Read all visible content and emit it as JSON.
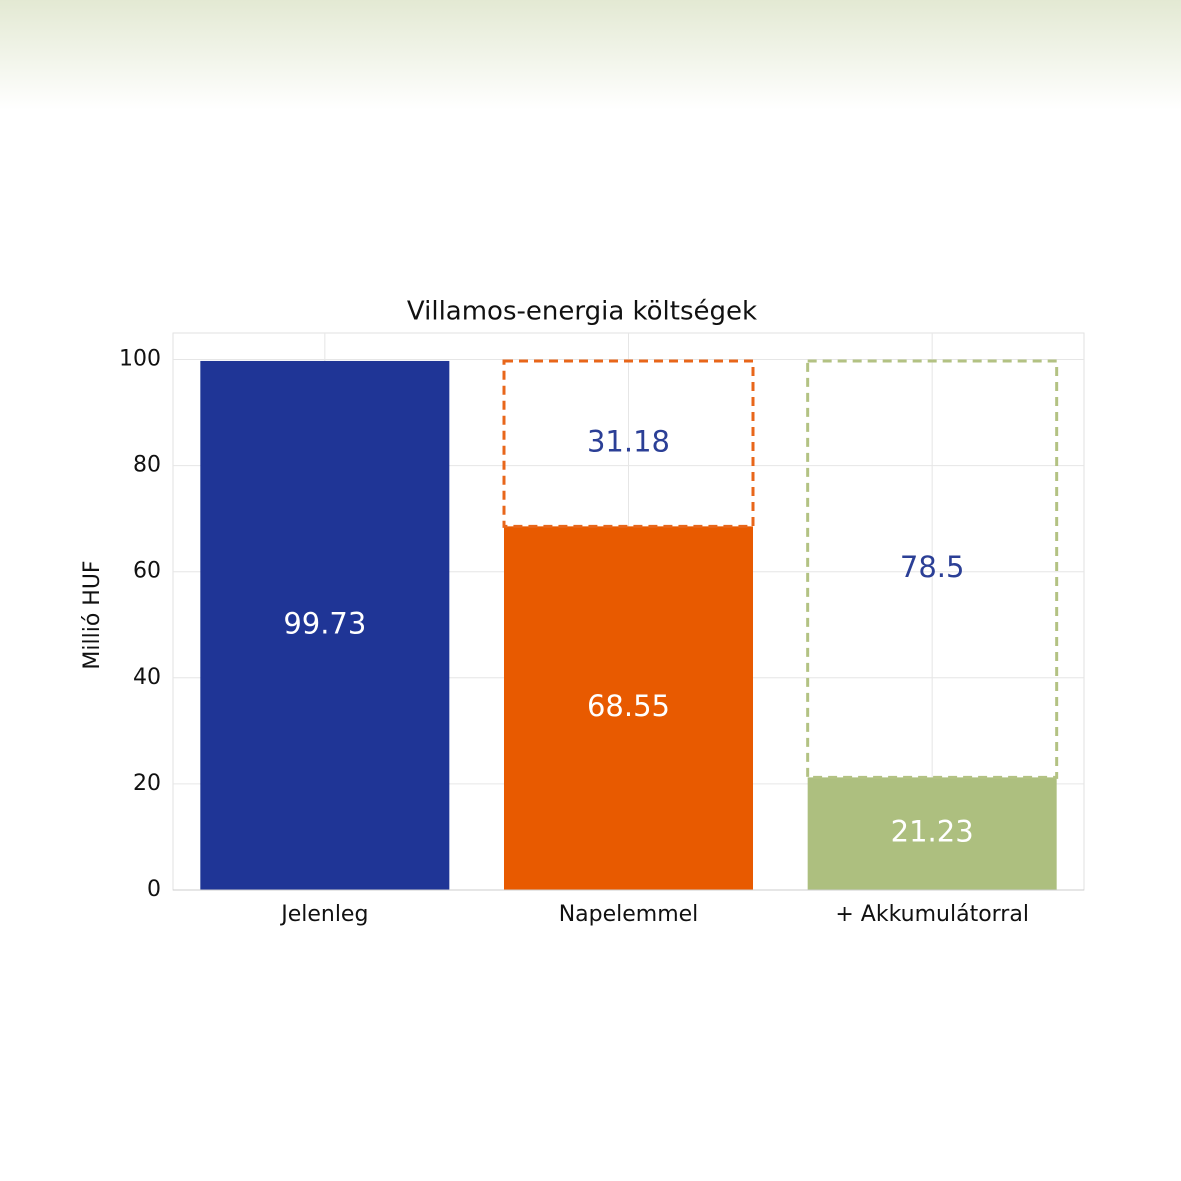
{
  "chart_data": {
    "type": "stacked-bar",
    "title": "Villamos-energia költségek",
    "y_label": "Millió HUF",
    "categories": [
      "Jelenleg",
      "Napelemmel",
      "+ Akkumulátorral"
    ],
    "series": [
      {
        "colors": [
          "#1f3596",
          "#e85a00",
          "#adbf7f"
        ],
        "style": "solid",
        "values": [
          99.73,
          68.55,
          21.23
        ]
      },
      {
        "colors": [
          "#9aa0a6",
          "#e8661a",
          "#b3c283"
        ],
        "style": "dashed",
        "values": [
          0,
          31.18,
          78.5
        ]
      }
    ],
    "label_colors": [
      "#ffffff",
      "#2b3f96"
    ],
    "ylim": [
      0,
      105
    ],
    "yticks": [
      0,
      20,
      40,
      60,
      80,
      100
    ],
    "grid": true
  }
}
